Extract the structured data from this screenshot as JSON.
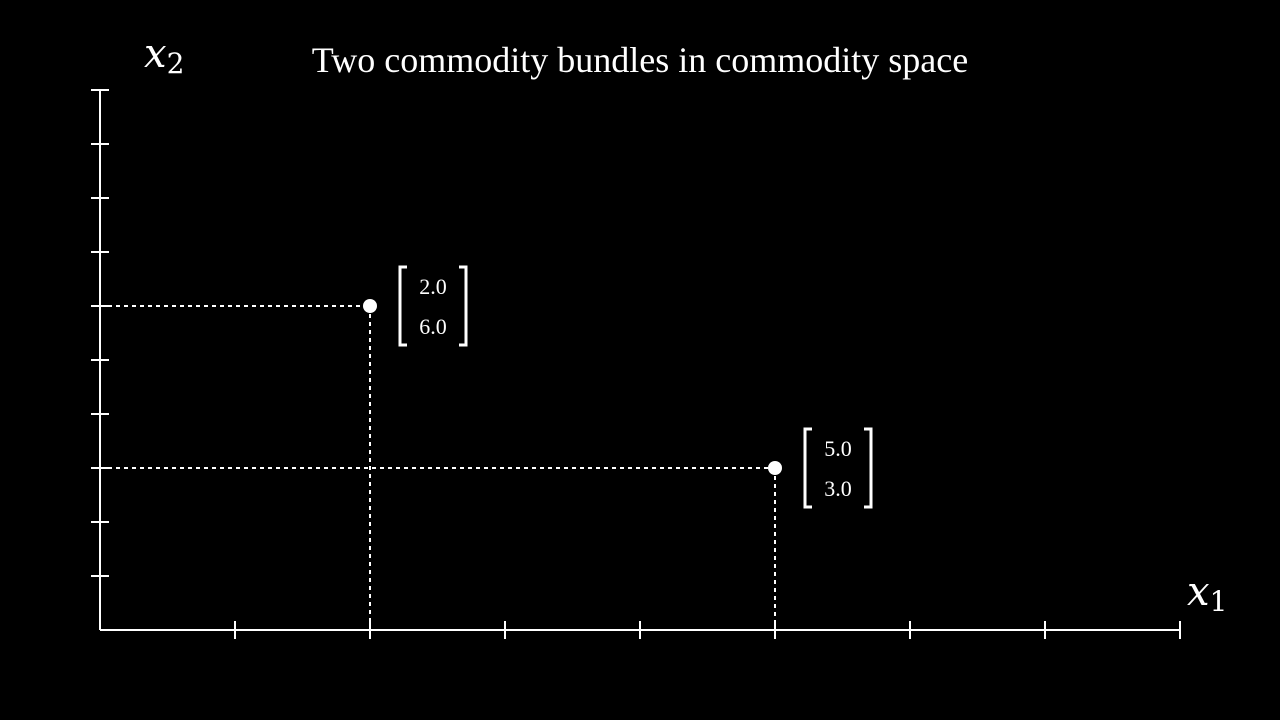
{
  "chart_data": {
    "type": "scatter",
    "title": "Two commodity bundles in commodity space",
    "xlabel": {
      "base": "x",
      "sub": "1"
    },
    "ylabel": {
      "base": "x",
      "sub": "2"
    },
    "xlim": [
      0,
      8
    ],
    "ylim": [
      0,
      10
    ],
    "x_ticks": [
      1,
      2,
      3,
      4,
      5,
      6,
      7,
      8
    ],
    "y_ticks": [
      1,
      2,
      3,
      4,
      5,
      6,
      7,
      8,
      9,
      10
    ],
    "grid": false,
    "points": [
      {
        "x": 2,
        "y": 6,
        "label": [
          "2.0",
          "6.0"
        ]
      },
      {
        "x": 5,
        "y": 3,
        "label": [
          "5.0",
          "3.0"
        ]
      }
    ],
    "projection_lines": "dashed",
    "colors": {
      "background": "#000000",
      "foreground": "#ffffff"
    }
  }
}
